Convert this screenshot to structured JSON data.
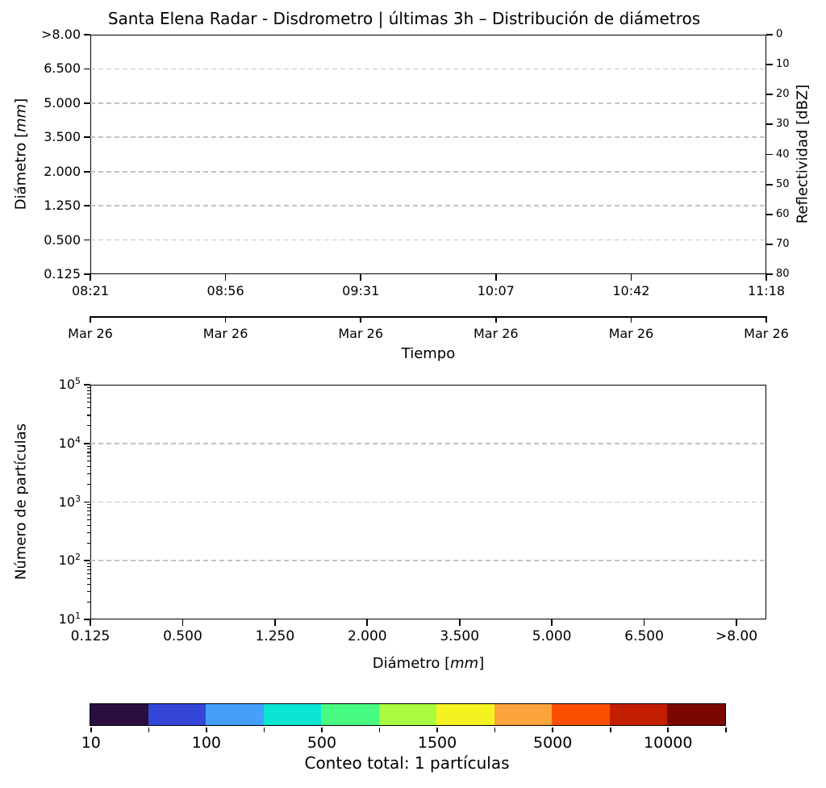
{
  "chart_data": [
    {
      "id": "time-diameter-panel",
      "type": "heatmap",
      "title": "Santa Elena Radar - Disdrometro | últimas 3h – Distribución de diámetros",
      "xlabel": "Tiempo",
      "ylabel_left": {
        "pre": "Diámetro [",
        "italic": "mm",
        "post": "]"
      },
      "ylabel_right": "Reflectividad [dBZ]",
      "x_ticks_time": [
        "08:21",
        "08:56",
        "09:31",
        "10:07",
        "10:42",
        "11:18"
      ],
      "x_ticks_date": [
        "Mar 26",
        "Mar 26",
        "Mar 26",
        "Mar 26",
        "Mar 26",
        "Mar 26"
      ],
      "y_ticks_left": [
        ">8.00",
        "6.500",
        "5.000",
        "3.500",
        "2.000",
        "1.250",
        "0.500",
        "0.125"
      ],
      "y_ticks_right": [
        "0",
        "10",
        "20",
        "30",
        "40",
        "50",
        "60",
        "70",
        "80"
      ],
      "grid": {
        "horizontal_dashed": true,
        "color": "#c4c4c4"
      },
      "series": []
    },
    {
      "id": "size-distribution-panel",
      "type": "bar",
      "xlabel": {
        "pre": "Diámetro [",
        "italic": "mm",
        "post": "]"
      },
      "ylabel": "Número de partículas",
      "x_ticks": [
        "0.125",
        "0.500",
        "1.250",
        "2.000",
        "3.500",
        "5.000",
        "6.500",
        ">8.00"
      ],
      "y_ticks": [
        "10^5",
        "10^4",
        "10^3",
        "10^2",
        "10^1"
      ],
      "y_scale": "log",
      "ylim": [
        10,
        100000
      ],
      "grid": {
        "horizontal_dashed": true,
        "color": "#c4c4c4"
      },
      "values": []
    }
  ],
  "colorbar": {
    "segment_colors": [
      "#2a0e3f",
      "#3346d8",
      "#45a0fc",
      "#0ae5d3",
      "#47fa82",
      "#a9fc3f",
      "#f4f321",
      "#fba43c",
      "#fc5000",
      "#c41e00",
      "#7a0800"
    ],
    "tick_labels": [
      "10",
      "100",
      "500",
      "1500",
      "5000",
      "10000"
    ],
    "caption": "Conteo total: 1 partículas"
  }
}
